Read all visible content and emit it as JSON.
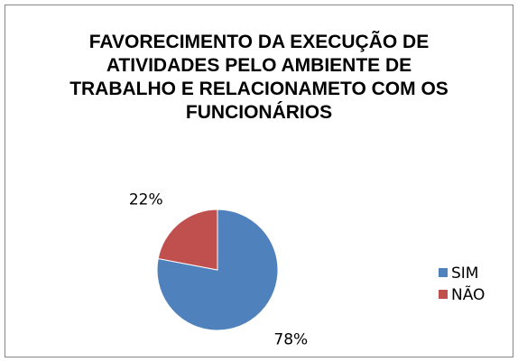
{
  "chart_data": {
    "type": "pie",
    "title": "FAVORECIMENTO DA EXECUÇÃO DE ATIVIDADES PELO AMBIENTE DE TRABALHO E RELACIONAMETO COM OS FUNCIONÁRIOS",
    "categories": [
      "SIM",
      "NÃO"
    ],
    "values": [
      78,
      22
    ],
    "value_labels": [
      "78%",
      "22%"
    ],
    "colors": [
      "#4f81bd",
      "#c0504d"
    ],
    "legend": "right"
  }
}
